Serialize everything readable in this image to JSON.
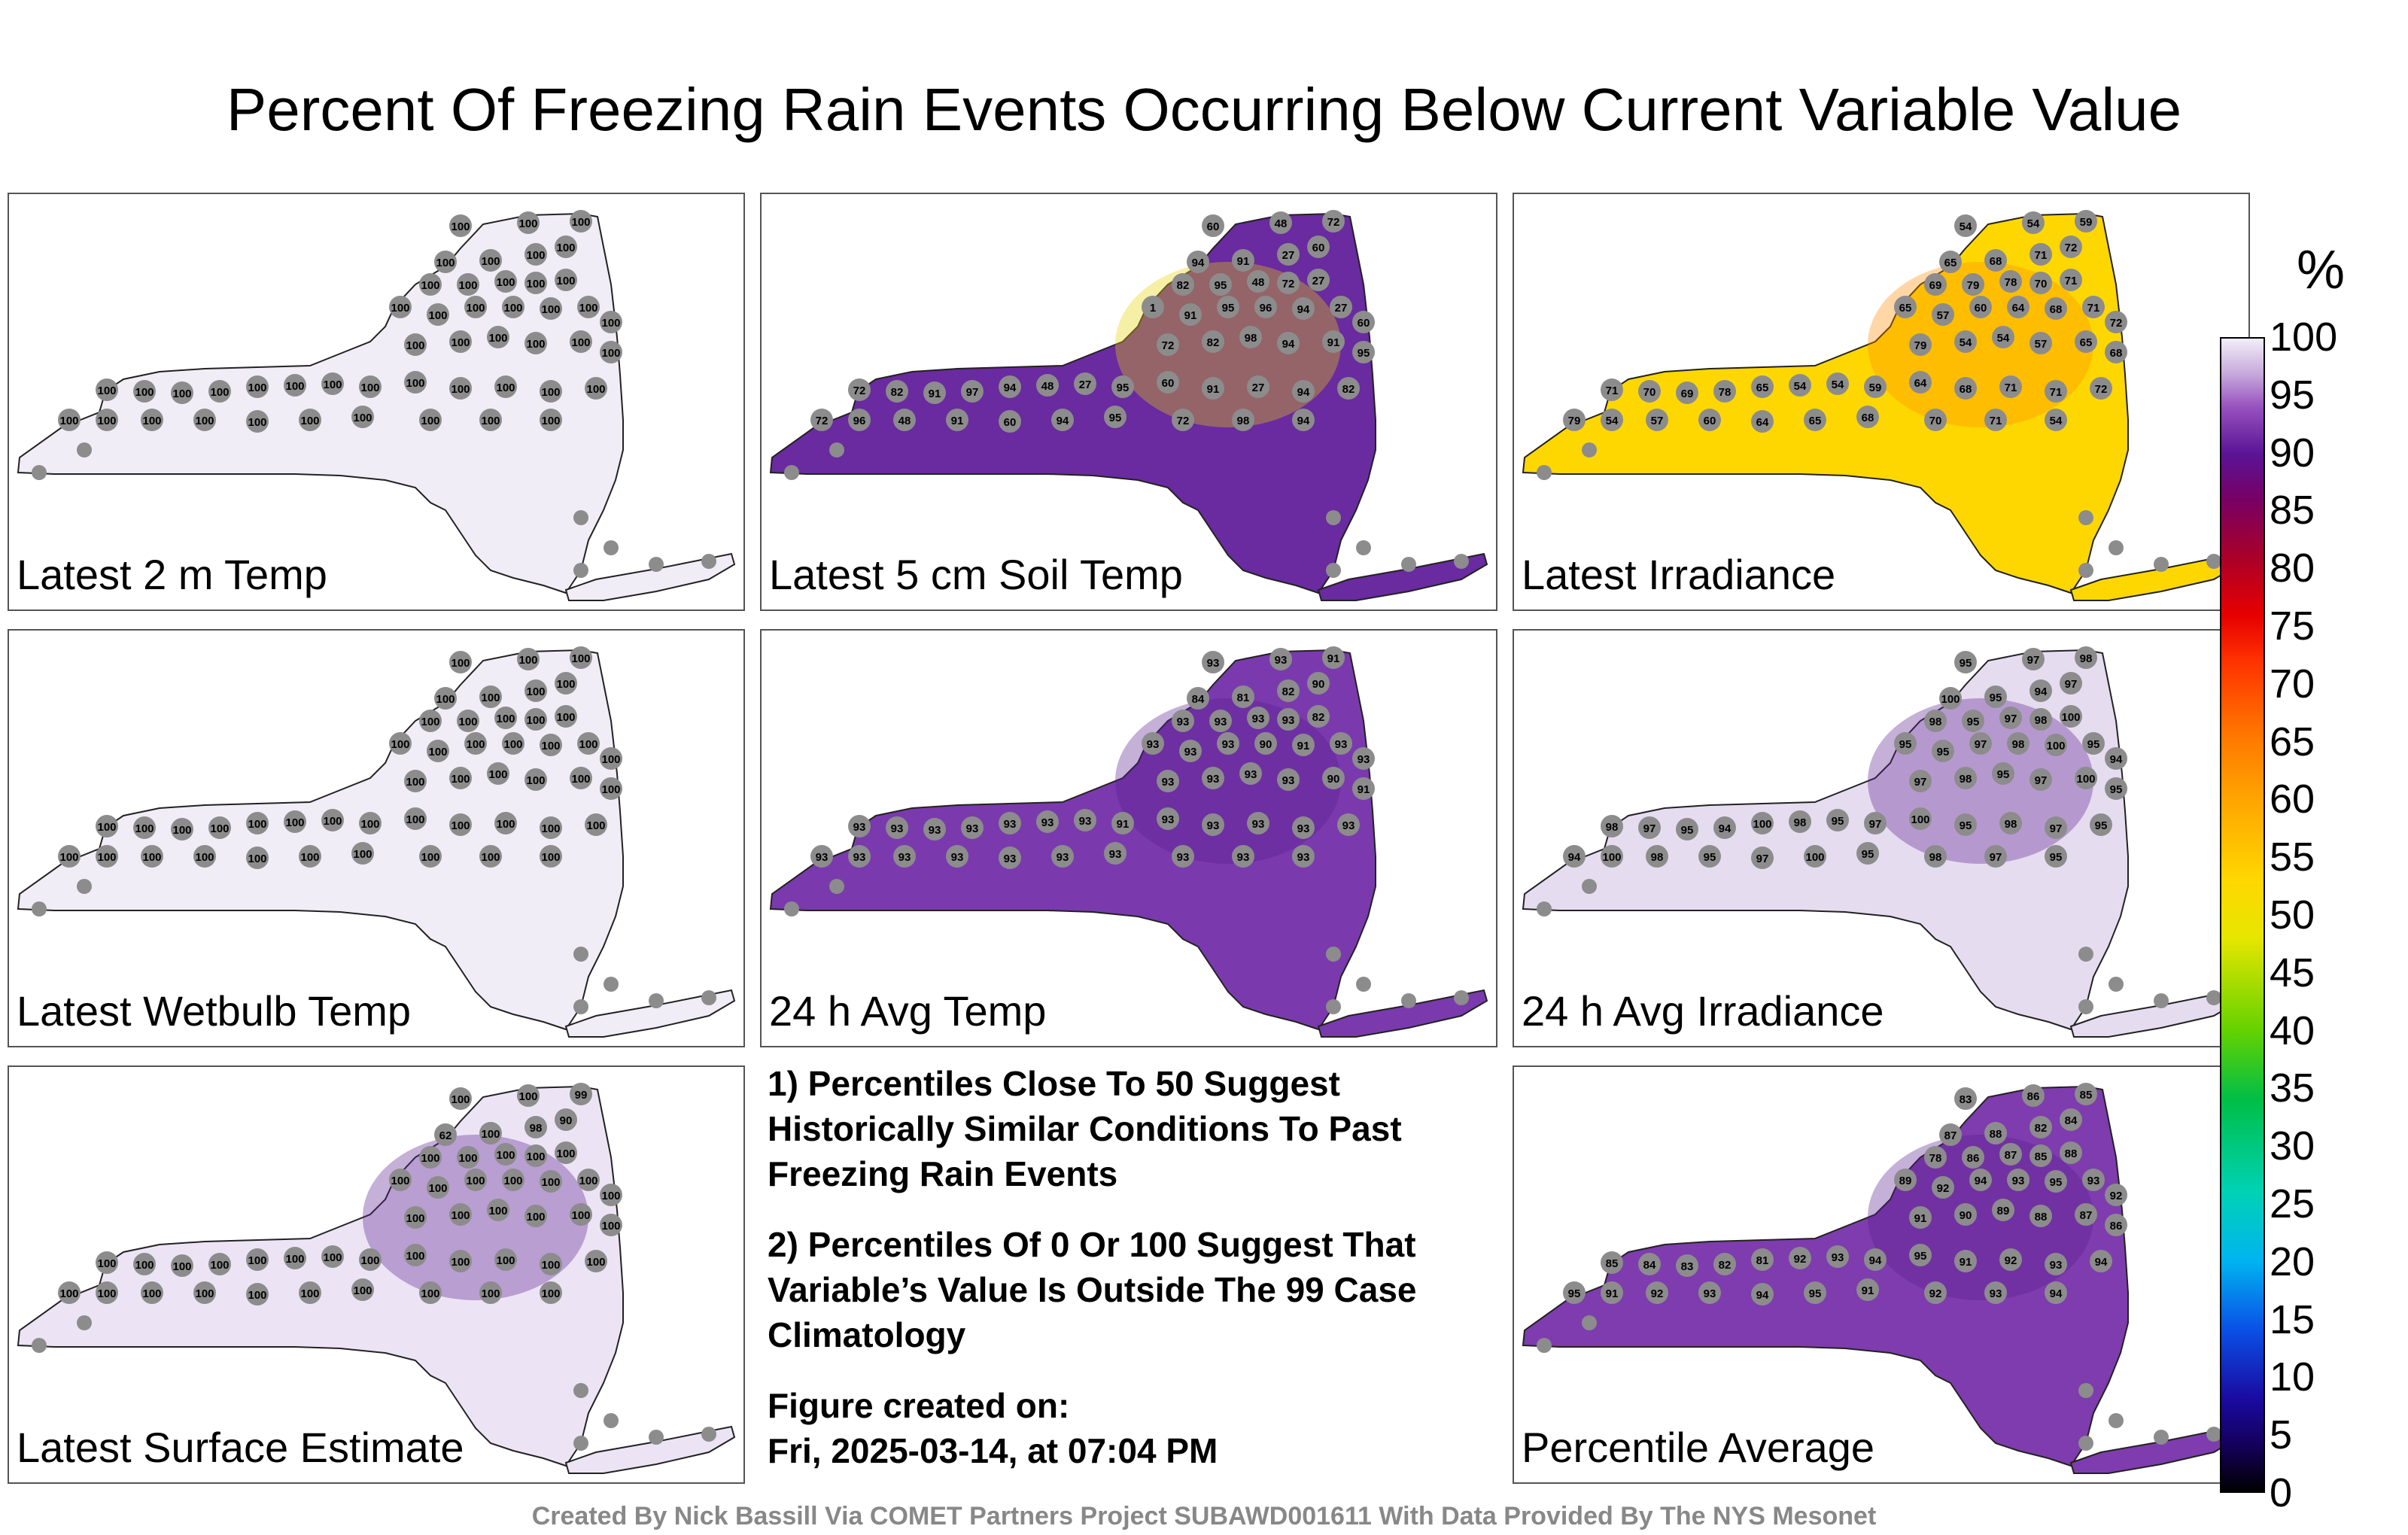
{
  "title": "Percent Of Freezing Rain Events Occurring Below Current Variable Value",
  "panels": [
    {
      "label": "Latest 2 m Temp",
      "fill": "#f1edf7",
      "values": [
        "100",
        "100",
        "100",
        "100",
        "100",
        "100",
        "100",
        "100",
        "100",
        "100",
        "100",
        "100",
        "100",
        "100",
        "100",
        "100",
        "100",
        "100",
        "100",
        "100",
        "100",
        "100",
        "100",
        "100",
        "100",
        "100",
        "100",
        "100",
        "100",
        "100",
        "100",
        "100",
        "100",
        "100",
        "100",
        "100",
        "100",
        "100",
        "100",
        "100",
        "100",
        "100",
        "100",
        "100",
        "100",
        "100",
        "100",
        "100"
      ]
    },
    {
      "label": "Latest 5 cm Soil Temp",
      "fill": "#6a2aa0",
      "values": [
        "60",
        "48",
        "72",
        "94",
        "91",
        "27",
        "60",
        "82",
        "95",
        "48",
        "72",
        "27",
        "1",
        "91",
        "95",
        "96",
        "94",
        "27",
        "60",
        "72",
        "82",
        "98",
        "94",
        "91",
        "95",
        "72",
        "82",
        "91",
        "97",
        "94",
        "48",
        "27",
        "95",
        "60",
        "91",
        "27",
        "94",
        "82",
        "72",
        "96",
        "48",
        "91",
        "60",
        "94",
        "95",
        "72",
        "98",
        "94"
      ]
    },
    {
      "label": "Latest Irradiance",
      "fill": "#ffd700",
      "values": [
        "54",
        "54",
        "59",
        "65",
        "68",
        "71",
        "72",
        "69",
        "79",
        "78",
        "70",
        "71",
        "65",
        "57",
        "60",
        "64",
        "68",
        "71",
        "72",
        "79",
        "54",
        "54",
        "57",
        "65",
        "68",
        "71",
        "70",
        "69",
        "78",
        "65",
        "54",
        "54",
        "59",
        "64",
        "68",
        "71",
        "71",
        "72",
        "79",
        "54",
        "57",
        "60",
        "64",
        "65",
        "68",
        "70",
        "71",
        "54"
      ]
    },
    {
      "label": "Latest Wetbulb Temp",
      "fill": "#f1edf7",
      "values": [
        "100",
        "100",
        "100",
        "100",
        "100",
        "100",
        "100",
        "100",
        "100",
        "100",
        "100",
        "100",
        "100",
        "100",
        "100",
        "100",
        "100",
        "100",
        "100",
        "100",
        "100",
        "100",
        "100",
        "100",
        "100",
        "100",
        "100",
        "100",
        "100",
        "100",
        "100",
        "100",
        "100",
        "100",
        "100",
        "100",
        "100",
        "100",
        "100",
        "100",
        "100",
        "100",
        "100",
        "100",
        "100",
        "100",
        "100",
        "100"
      ]
    },
    {
      "label": "24 h Avg Temp",
      "fill": "#7a3aae",
      "values": [
        "93",
        "93",
        "91",
        "84",
        "81",
        "82",
        "90",
        "93",
        "93",
        "93",
        "93",
        "82",
        "93",
        "93",
        "93",
        "90",
        "91",
        "93",
        "93",
        "93",
        "93",
        "93",
        "93",
        "90",
        "91",
        "93",
        "93",
        "93",
        "93",
        "93",
        "93",
        "93",
        "91",
        "93",
        "93",
        "93",
        "93",
        "93",
        "93",
        "93",
        "93",
        "93",
        "93",
        "93",
        "93",
        "93",
        "93",
        "93"
      ]
    },
    {
      "label": "24 h Avg Irradiance",
      "fill": "#e6dcf0",
      "values": [
        "95",
        "97",
        "98",
        "100",
        "95",
        "94",
        "97",
        "98",
        "95",
        "97",
        "98",
        "100",
        "95",
        "95",
        "97",
        "98",
        "100",
        "95",
        "94",
        "97",
        "98",
        "95",
        "97",
        "100",
        "95",
        "98",
        "97",
        "95",
        "94",
        "100",
        "98",
        "95",
        "97",
        "100",
        "95",
        "98",
        "97",
        "95",
        "94",
        "100",
        "98",
        "95",
        "97",
        "100",
        "95",
        "98",
        "97",
        "95"
      ]
    },
    {
      "label": "Latest Surface Estimate",
      "fill": "#ece4f4",
      "values": [
        "100",
        "100",
        "99",
        "62",
        "100",
        "98",
        "90",
        "100",
        "100",
        "100",
        "100",
        "100",
        "100",
        "100",
        "100",
        "100",
        "100",
        "100",
        "100",
        "100",
        "100",
        "100",
        "100",
        "100",
        "100",
        "100",
        "100",
        "100",
        "100",
        "100",
        "100",
        "100",
        "100",
        "100",
        "100",
        "100",
        "100",
        "100",
        "100",
        "100",
        "100",
        "100",
        "100",
        "100",
        "100",
        "100",
        "100",
        "100"
      ]
    },
    {
      "label": "Percentile Average",
      "fill": "#7e3cae",
      "values": [
        "83",
        "86",
        "85",
        "87",
        "88",
        "82",
        "84",
        "78",
        "86",
        "87",
        "85",
        "88",
        "89",
        "92",
        "94",
        "93",
        "95",
        "93",
        "92",
        "91",
        "90",
        "89",
        "88",
        "87",
        "86",
        "85",
        "84",
        "83",
        "82",
        "81",
        "92",
        "93",
        "94",
        "95",
        "91",
        "92",
        "93",
        "94",
        "95",
        "91",
        "92",
        "93",
        "94",
        "95",
        "91",
        "92",
        "93",
        "94"
      ]
    }
  ],
  "notes": [
    "1) Percentiles Close To 50 Suggest Historically Similar Conditions To Past Freezing Rain Events",
    "2) Percentiles Of 0 Or 100 Suggest That Variable’s Value Is Outside The 99 Case Climatology"
  ],
  "figure_created_label": "Figure created on:",
  "figure_created_date": "Fri, 2025-03-14, at 07:04 PM",
  "colorbar": {
    "unit": "%",
    "ticks": [
      "100",
      "95",
      "90",
      "85",
      "80",
      "75",
      "70",
      "65",
      "60",
      "55",
      "50",
      "45",
      "40",
      "35",
      "30",
      "25",
      "20",
      "15",
      "10",
      "5",
      "0"
    ]
  },
  "credit": "Created By Nick Bassill Via COMET Partners Project SUBAWD001611 With Data Provided By The NYS Mesonet"
}
